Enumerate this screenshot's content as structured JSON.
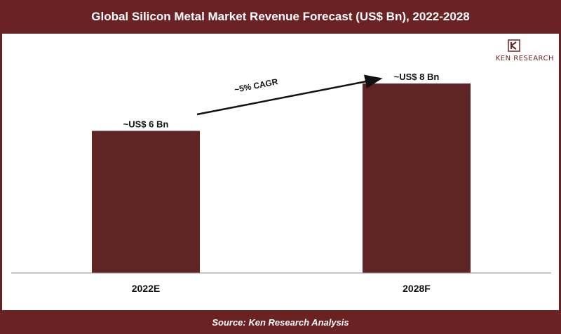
{
  "header": {
    "title": "Global Silicon Metal Market Revenue Forecast (US$ Bn), 2022-2028"
  },
  "footer": {
    "source": "Source: Ken Research Analysis"
  },
  "logo": {
    "text": "KEN RESEARCH",
    "icon": "ken-research-logo"
  },
  "colors": {
    "brand": "#6b2222",
    "bar": "#612424",
    "text": "#111111"
  },
  "chart_data": {
    "type": "bar",
    "title": "Global Silicon Metal Market Revenue Forecast (US$ Bn), 2022-2028",
    "xlabel": "",
    "ylabel": "",
    "categories": [
      "2022E",
      "2028F"
    ],
    "values": [
      6,
      8
    ],
    "data_labels": [
      "~US$ 6 Bn",
      "~US$ 8 Bn"
    ],
    "annotations": [
      {
        "text": "~5% CAGR",
        "from": "2022E",
        "to": "2028F"
      }
    ],
    "ylim": [
      0,
      10
    ],
    "grid": false,
    "legend": "none"
  }
}
